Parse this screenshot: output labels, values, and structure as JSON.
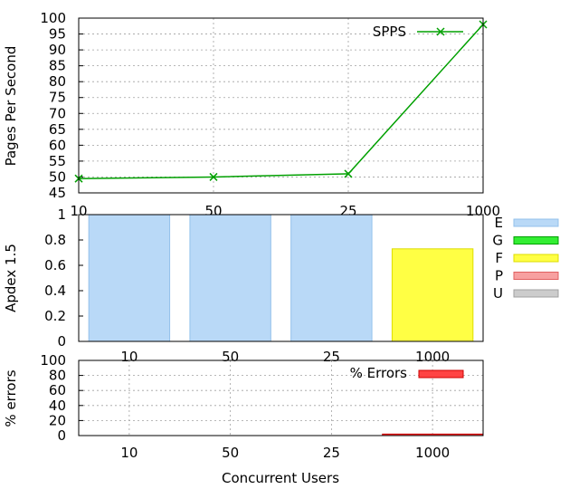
{
  "chart_data": [
    {
      "type": "line",
      "ylabel": "Pages Per Second",
      "categories": [
        "10",
        "50",
        "25",
        "1000"
      ],
      "ylim": [
        45,
        100
      ],
      "yticks": [
        45,
        50,
        55,
        60,
        65,
        70,
        75,
        80,
        85,
        90,
        95,
        100
      ],
      "series": [
        {
          "name": "SPPS",
          "values": [
            49.5,
            50,
            51,
            98
          ],
          "color": "#00a000",
          "marker": "x"
        }
      ],
      "grid": true,
      "legend": "top-right"
    },
    {
      "type": "bar",
      "ylabel": "Apdex 1.5",
      "categories": [
        "10",
        "50",
        "25",
        "1000"
      ],
      "values": [
        1.0,
        1.0,
        1.0,
        0.73
      ],
      "bar_ratings": [
        "E",
        "E",
        "E",
        "F"
      ],
      "ylim": [
        0,
        1
      ],
      "yticks": [
        "0",
        "0.2",
        "0.4",
        "0.6",
        "0.8",
        "1"
      ],
      "legend": [
        {
          "label": "E",
          "color": "#b9d9f7",
          "border": "#93c1eb"
        },
        {
          "label": "G",
          "color": "#33ee33",
          "border": "#00a000"
        },
        {
          "label": "F",
          "color": "#ffff44",
          "border": "#dddd00"
        },
        {
          "label": "P",
          "color": "#f7a0a0",
          "border": "#e06060"
        },
        {
          "label": "U",
          "color": "#cccccc",
          "border": "#a0a0a0"
        }
      ],
      "legend_placement": "right"
    },
    {
      "type": "bar",
      "ylabel": "% errors",
      "xlabel": "Concurrent Users",
      "categories": [
        "10",
        "50",
        "25",
        "1000"
      ],
      "series": [
        {
          "name": "% Errors",
          "values": [
            0,
            0,
            0,
            2
          ],
          "color": "#ff4444",
          "border": "#cc0000"
        }
      ],
      "ylim": [
        0,
        100
      ],
      "yticks": [
        0,
        20,
        40,
        60,
        80,
        100
      ],
      "grid": true,
      "legend": "top-right"
    }
  ]
}
